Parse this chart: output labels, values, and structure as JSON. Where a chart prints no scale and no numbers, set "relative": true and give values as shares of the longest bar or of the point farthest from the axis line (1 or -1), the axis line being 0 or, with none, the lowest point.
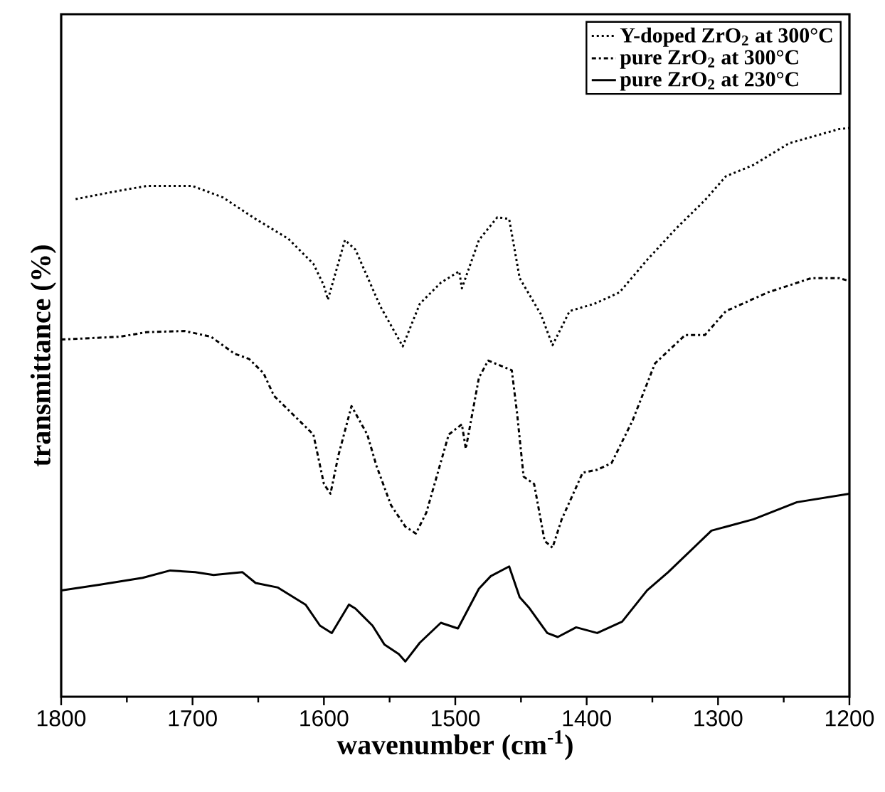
{
  "chart_data": {
    "type": "line",
    "relative": true,
    "xlabel": "wavenumber (cm$^{-1}$)",
    "ylabel": "transmittance (%)",
    "xlim": [
      1800,
      1200
    ],
    "xticks": [
      1800,
      1700,
      1600,
      1500,
      1400,
      1300,
      1200
    ],
    "legend": "top right",
    "grid": false,
    "series": [
      {
        "name": "Y-doped ZrO$_{2}$ at 300°C",
        "color": "#000000",
        "line_style": "dotted",
        "x": [
          1789,
          1755,
          1735,
          1700,
          1677,
          1652,
          1627,
          1608,
          1600,
          1597,
          1584,
          1576,
          1557,
          1540,
          1527,
          1511,
          1497,
          1495,
          1482,
          1468,
          1459,
          1451,
          1435,
          1426,
          1413,
          1394,
          1375,
          1354,
          1332,
          1310,
          1294,
          1273,
          1246,
          1208,
          1200
        ],
        "values": [
          0.875,
          0.89,
          0.898,
          0.898,
          0.878,
          0.84,
          0.805,
          0.761,
          0.723,
          0.698,
          0.803,
          0.786,
          0.686,
          0.616,
          0.691,
          0.728,
          0.748,
          0.718,
          0.803,
          0.843,
          0.84,
          0.736,
          0.673,
          0.618,
          0.678,
          0.691,
          0.711,
          0.768,
          0.823,
          0.873,
          0.915,
          0.935,
          0.973,
          0.998,
          1
        ]
      },
      {
        "name": "pure ZrO$_{2}$ at 300°C",
        "color": "#000000",
        "line_style": "dashdot",
        "x": [
          1800,
          1755,
          1735,
          1706,
          1686,
          1668,
          1657,
          1646,
          1638,
          1630,
          1608,
          1600,
          1595,
          1589,
          1579,
          1567,
          1560,
          1549,
          1538,
          1530,
          1522,
          1505,
          1495,
          1492,
          1482,
          1475,
          1457,
          1453,
          1448,
          1440,
          1432,
          1426,
          1419,
          1403,
          1392,
          1381,
          1365,
          1348,
          1325,
          1310,
          1294,
          1262,
          1229,
          1208,
          1200
        ],
        "values": [
          0.628,
          0.633,
          0.641,
          0.643,
          0.633,
          0.603,
          0.594,
          0.569,
          0.529,
          0.511,
          0.461,
          0.374,
          0.357,
          0.424,
          0.511,
          0.461,
          0.406,
          0.337,
          0.299,
          0.287,
          0.324,
          0.461,
          0.479,
          0.436,
          0.561,
          0.591,
          0.574,
          0.499,
          0.387,
          0.374,
          0.274,
          0.262,
          0.312,
          0.394,
          0.399,
          0.411,
          0.486,
          0.586,
          0.636,
          0.636,
          0.678,
          0.711,
          0.736,
          0.736,
          0.731
        ]
      },
      {
        "name": "pure ZrO$_{2}$ at 230°C",
        "color": "#000000",
        "line_style": "solid",
        "x": [
          1800,
          1771,
          1738,
          1717,
          1698,
          1684,
          1662,
          1652,
          1635,
          1614,
          1603,
          1594,
          1581,
          1576,
          1563,
          1554,
          1543,
          1538,
          1527,
          1511,
          1498,
          1482,
          1473,
          1459,
          1451,
          1444,
          1430,
          1422,
          1408,
          1392,
          1373,
          1354,
          1338,
          1305,
          1273,
          1240,
          1200
        ],
        "values": [
          0.187,
          0.197,
          0.209,
          0.222,
          0.219,
          0.214,
          0.219,
          0.2,
          0.192,
          0.162,
          0.125,
          0.112,
          0.162,
          0.155,
          0.125,
          0.092,
          0.075,
          0.062,
          0.095,
          0.13,
          0.12,
          0.19,
          0.212,
          0.229,
          0.175,
          0.157,
          0.112,
          0.105,
          0.122,
          0.112,
          0.132,
          0.187,
          0.219,
          0.292,
          0.312,
          0.342,
          0.357
        ]
      }
    ]
  }
}
